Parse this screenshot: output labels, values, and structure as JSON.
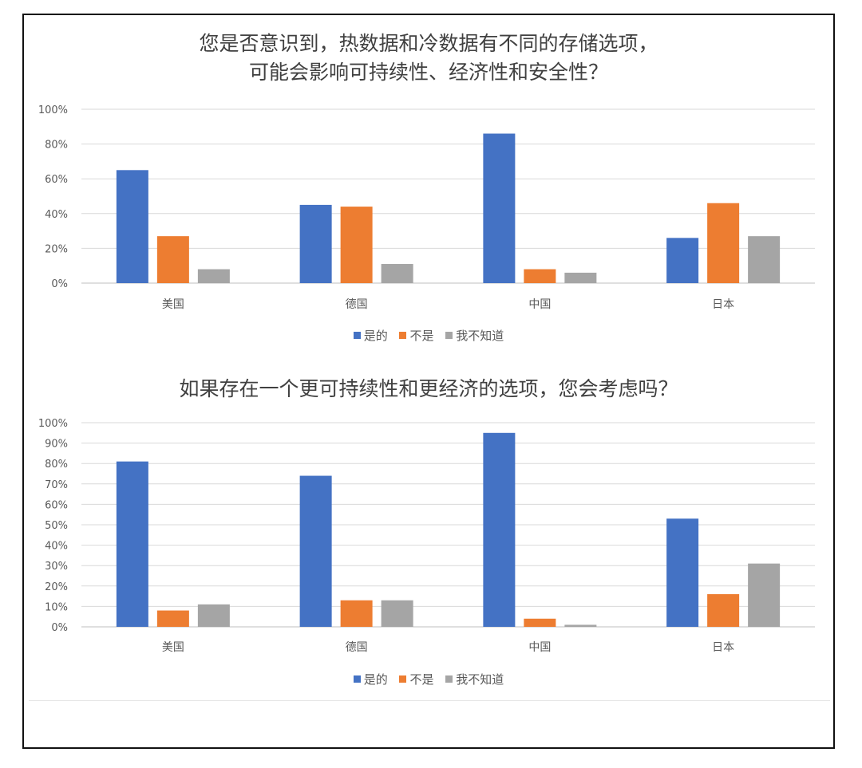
{
  "chart_data": [
    {
      "type": "bar",
      "title_lines": [
        "您是否意识到，热数据和冷数据有不同的存储选项，",
        "可能会影响可持续性、经济性和安全性？"
      ],
      "categories": [
        "美国",
        "德国",
        "中国",
        "日本"
      ],
      "series": [
        {
          "name": "是的",
          "color": "#4472C4",
          "values": [
            65,
            45,
            86,
            26
          ]
        },
        {
          "name": "不是",
          "color": "#ED7D31",
          "values": [
            27,
            44,
            8,
            46
          ]
        },
        {
          "name": "我不知道",
          "color": "#A5A5A5",
          "values": [
            8,
            11,
            6,
            27
          ]
        }
      ],
      "ylim": [
        0,
        100
      ],
      "yticks": [
        0,
        20,
        40,
        60,
        80,
        100
      ],
      "ytick_labels": [
        "0%",
        "20%",
        "40%",
        "60%",
        "80%",
        "100%"
      ],
      "grid": true,
      "legend_position": "bottom"
    },
    {
      "type": "bar",
      "title_lines": [
        "如果存在一个更可持续性和更经济的选项，您会考虑吗？"
      ],
      "categories": [
        "美国",
        "德国",
        "中国",
        "日本"
      ],
      "series": [
        {
          "name": "是的",
          "color": "#4472C4",
          "values": [
            81,
            74,
            95,
            53
          ]
        },
        {
          "name": "不是",
          "color": "#ED7D31",
          "values": [
            8,
            13,
            4,
            16
          ]
        },
        {
          "name": "我不知道",
          "color": "#A5A5A5",
          "values": [
            11,
            13,
            1,
            31
          ]
        }
      ],
      "ylim": [
        0,
        100
      ],
      "yticks": [
        0,
        10,
        20,
        30,
        40,
        50,
        60,
        70,
        80,
        90,
        100
      ],
      "ytick_labels": [
        "0%",
        "10%",
        "20%",
        "30%",
        "40%",
        "50%",
        "60%",
        "70%",
        "80%",
        "90%",
        "100%"
      ],
      "grid": true,
      "legend_position": "bottom"
    }
  ]
}
